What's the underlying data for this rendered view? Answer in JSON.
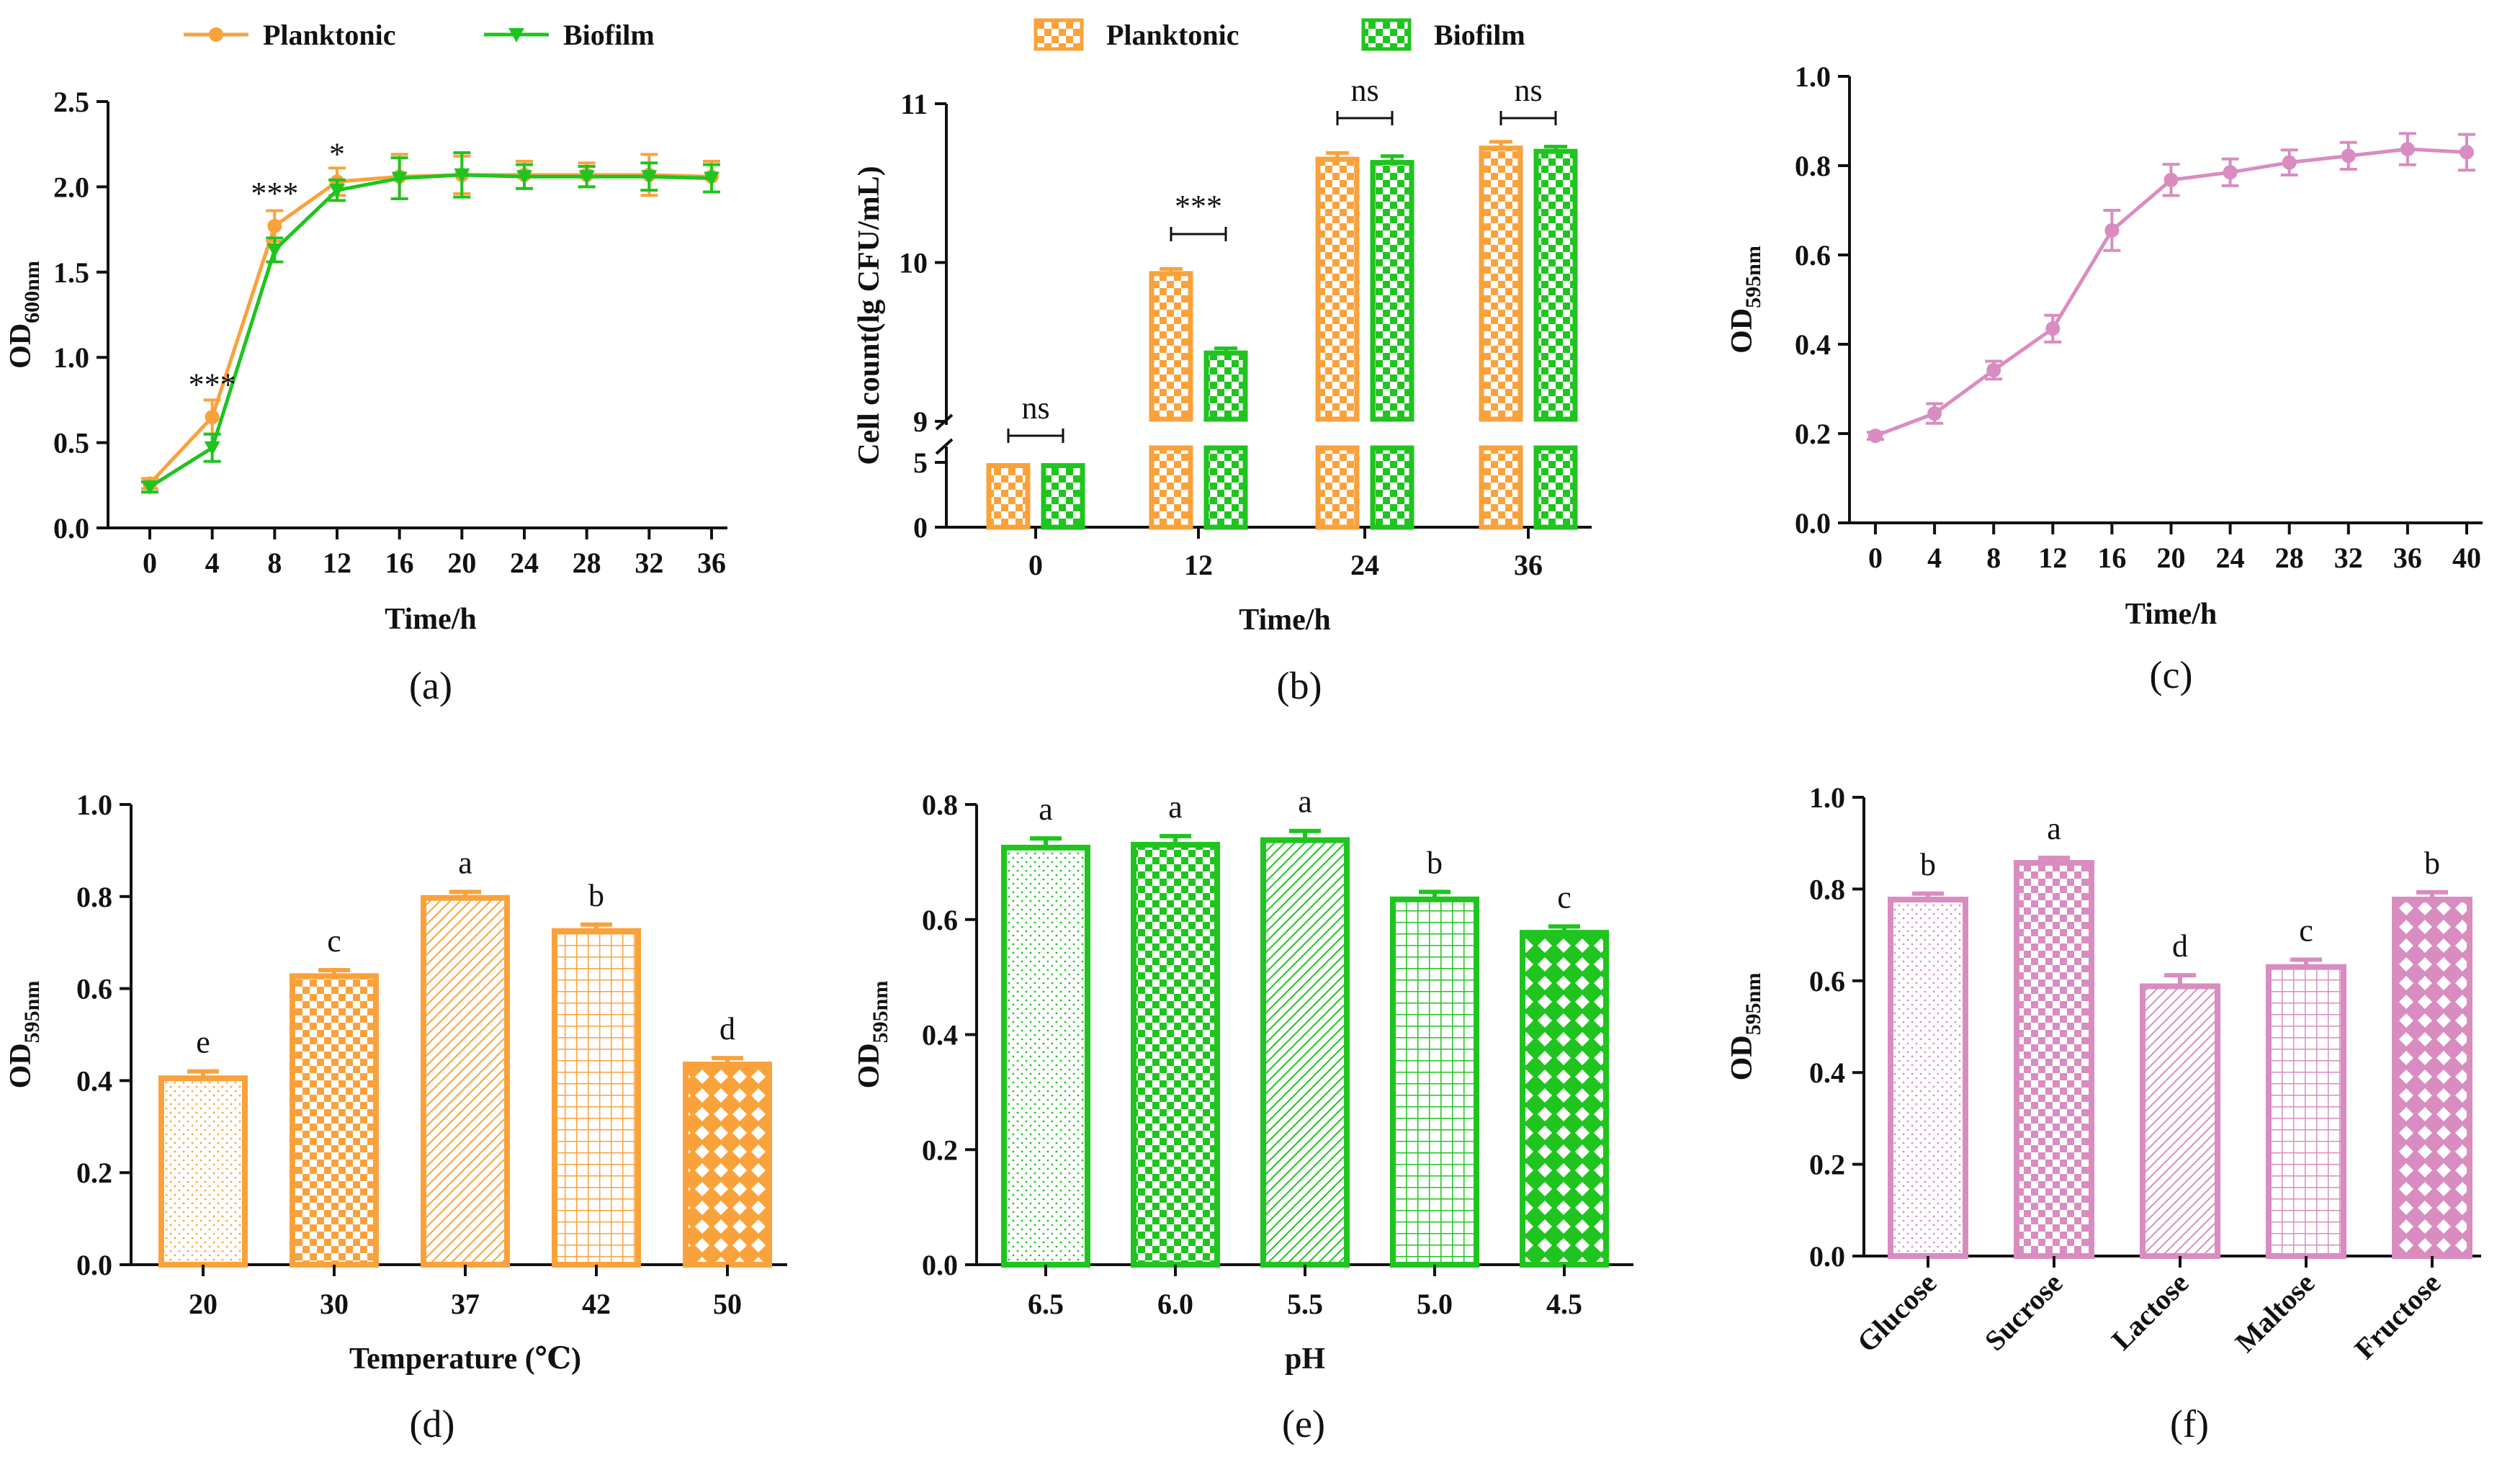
{
  "colors": {
    "orange": "#F9A23C",
    "green": "#1FC41F",
    "pink": "#D98CC0",
    "ink": "#111111"
  },
  "chart_data": [
    {
      "id": "a",
      "panel_label": "(a)",
      "type": "line",
      "xlabel": "Time/h",
      "ylabel_main": "OD",
      "ylabel_sub": "600nm",
      "xlim": [
        0,
        36
      ],
      "ylim": [
        0,
        2.5
      ],
      "xticks": [
        "0",
        "4",
        "8",
        "12",
        "16",
        "20",
        "24",
        "28",
        "32",
        "36"
      ],
      "yticks": [
        "0.0",
        "0.5",
        "1.0",
        "1.5",
        "2.0",
        "2.5"
      ],
      "x": [
        0,
        4,
        8,
        12,
        16,
        20,
        24,
        28,
        32,
        36
      ],
      "legend": {
        "entries": [
          "Planktonic",
          "Biofilm"
        ],
        "placement": "top"
      },
      "series": [
        {
          "name": "Planktonic",
          "color": "#F9A23C",
          "values": [
            0.26,
            0.65,
            1.77,
            2.03,
            2.06,
            2.07,
            2.07,
            2.07,
            2.07,
            2.06
          ],
          "errors": [
            0.03,
            0.1,
            0.09,
            0.08,
            0.13,
            0.11,
            0.08,
            0.07,
            0.12,
            0.09
          ]
        },
        {
          "name": "Biofilm",
          "color": "#1FC41F",
          "values": [
            0.24,
            0.47,
            1.63,
            1.98,
            2.05,
            2.07,
            2.06,
            2.06,
            2.06,
            2.05
          ],
          "errors": [
            0.03,
            0.08,
            0.07,
            0.06,
            0.12,
            0.13,
            0.07,
            0.06,
            0.08,
            0.08
          ]
        }
      ],
      "annotations": [
        {
          "x": 4,
          "y": 0.78,
          "text": "***"
        },
        {
          "x": 8,
          "y": 1.9,
          "text": "***"
        },
        {
          "x": 12,
          "y": 2.13,
          "text": "*"
        }
      ]
    },
    {
      "id": "b",
      "panel_label": "(b)",
      "type": "bar",
      "xlabel": "Time/h",
      "ylabel": "Cell count(lg CFU/mL)",
      "categories": [
        "0",
        "12",
        "24",
        "36"
      ],
      "yticks": [
        "0",
        "5",
        "9",
        "10",
        "11"
      ],
      "legend": {
        "entries": [
          "Planktonic",
          "Biofilm"
        ],
        "placement": "top"
      },
      "series": [
        {
          "name": "Planktonic",
          "color": "#F9A23C",
          "values": [
            4.75,
            9.93,
            10.65,
            10.72
          ],
          "errors": [
            0.05,
            0.03,
            0.04,
            0.04
          ]
        },
        {
          "name": "Biofilm",
          "color": "#1FC41F",
          "values": [
            4.75,
            9.43,
            10.63,
            10.7
          ],
          "errors": [
            0.05,
            0.03,
            0.04,
            0.03
          ]
        }
      ],
      "brackets": [
        {
          "category": "0",
          "text": "ns"
        },
        {
          "category": "12",
          "text": "***"
        },
        {
          "category": "24",
          "text": "ns"
        },
        {
          "category": "36",
          "text": "ns"
        }
      ]
    },
    {
      "id": "c",
      "panel_label": "(c)",
      "type": "line",
      "xlabel": "Time/h",
      "ylabel_main": "OD",
      "ylabel_sub": "595nm",
      "xlim": [
        0,
        40
      ],
      "ylim": [
        0,
        1.0
      ],
      "xticks": [
        "0",
        "4",
        "8",
        "12",
        "16",
        "20",
        "24",
        "28",
        "32",
        "36",
        "40"
      ],
      "yticks": [
        "0.0",
        "0.2",
        "0.4",
        "0.6",
        "0.8",
        "1.0"
      ],
      "x": [
        0,
        4,
        8,
        12,
        16,
        20,
        24,
        28,
        32,
        36,
        40
      ],
      "series": [
        {
          "name": "OD595",
          "color": "#D98CC0",
          "values": [
            0.195,
            0.245,
            0.342,
            0.435,
            0.655,
            0.768,
            0.785,
            0.807,
            0.822,
            0.837,
            0.83
          ],
          "errors": [
            0.008,
            0.022,
            0.02,
            0.03,
            0.045,
            0.035,
            0.03,
            0.028,
            0.03,
            0.035,
            0.04
          ]
        }
      ]
    },
    {
      "id": "d",
      "panel_label": "(d)",
      "type": "bar",
      "xlabel": "Temperature (℃)",
      "ylabel_main": "OD",
      "ylabel_sub": "595nm",
      "categories": [
        "20",
        "30",
        "37",
        "42",
        "50"
      ],
      "ylim": [
        0,
        1.0
      ],
      "yticks": [
        "0.0",
        "0.2",
        "0.4",
        "0.6",
        "0.8",
        "1.0"
      ],
      "color": "#F9A23C",
      "values": [
        0.405,
        0.627,
        0.797,
        0.725,
        0.435
      ],
      "errors": [
        0.015,
        0.013,
        0.013,
        0.014,
        0.014
      ],
      "letters": [
        "e",
        "c",
        "a",
        "b",
        "d"
      ]
    },
    {
      "id": "e",
      "panel_label": "(e)",
      "type": "bar",
      "xlabel": "pH",
      "ylabel_main": "OD",
      "ylabel_sub": "595nm",
      "categories": [
        "6.5",
        "6.0",
        "5.5",
        "5.0",
        "4.5"
      ],
      "ylim": [
        0,
        0.8
      ],
      "yticks": [
        "0.0",
        "0.2",
        "0.4",
        "0.6",
        "0.8"
      ],
      "color": "#1FC41F",
      "values": [
        0.725,
        0.73,
        0.738,
        0.635,
        0.577
      ],
      "errors": [
        0.016,
        0.015,
        0.016,
        0.013,
        0.011
      ],
      "letters": [
        "a",
        "a",
        "a",
        "b",
        "c"
      ]
    },
    {
      "id": "f",
      "panel_label": "(f)",
      "type": "bar",
      "xlabel": "",
      "ylabel_main": "OD",
      "ylabel_sub": "595nm",
      "categories": [
        "Glucose",
        "Sucrose",
        "Lactose",
        "Maltose",
        "Fructose"
      ],
      "ylim": [
        0,
        1.0
      ],
      "yticks": [
        "0.0",
        "0.2",
        "0.4",
        "0.6",
        "0.8",
        "1.0"
      ],
      "color": "#D98CC0",
      "values": [
        0.777,
        0.857,
        0.588,
        0.63,
        0.777
      ],
      "errors": [
        0.013,
        0.011,
        0.024,
        0.016,
        0.016
      ],
      "letters": [
        "b",
        "a",
        "d",
        "c",
        "b"
      ]
    }
  ]
}
